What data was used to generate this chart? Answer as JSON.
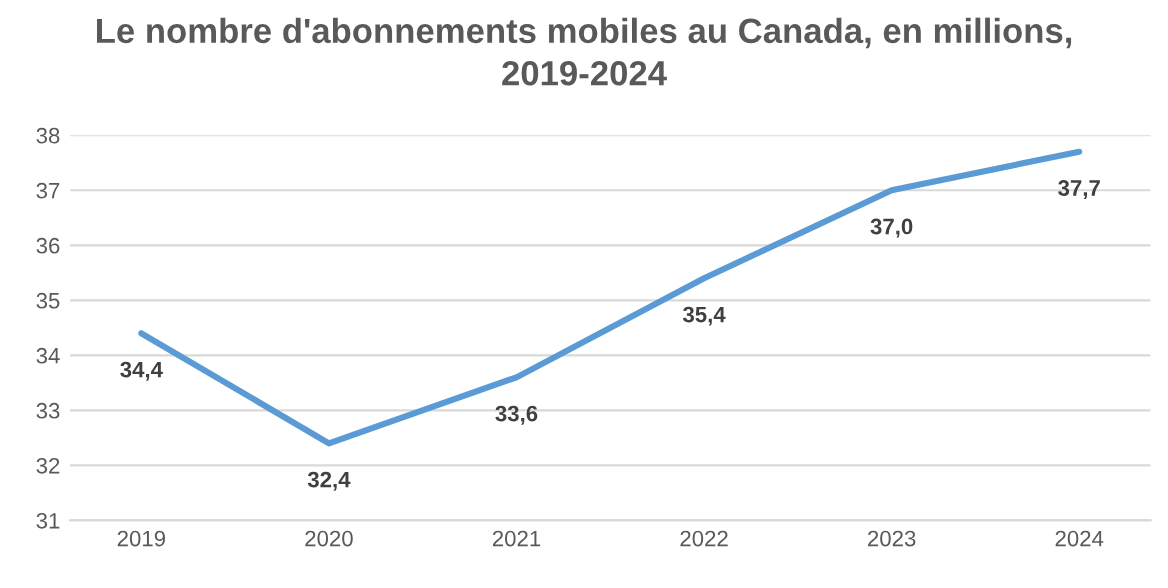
{
  "chart_data": {
    "type": "line",
    "title": "Le nombre d'abonnements mobiles au Canada, en millions,\n2019-2024",
    "categories": [
      "2019",
      "2020",
      "2021",
      "2022",
      "2023",
      "2024"
    ],
    "series": [
      {
        "color": "#5b9bd5",
        "values": [
          34.4,
          32.4,
          33.6,
          35.4,
          37.0,
          37.7
        ],
        "value_labels": [
          "34,4",
          "32,4",
          "33,6",
          "35,4",
          "37,0",
          "37,7"
        ]
      }
    ],
    "ylim": [
      31,
      38
    ],
    "yticks": [
      31,
      32,
      33,
      34,
      35,
      36,
      37,
      38
    ],
    "grid": "y",
    "marker": "none",
    "line_style": "solid"
  }
}
